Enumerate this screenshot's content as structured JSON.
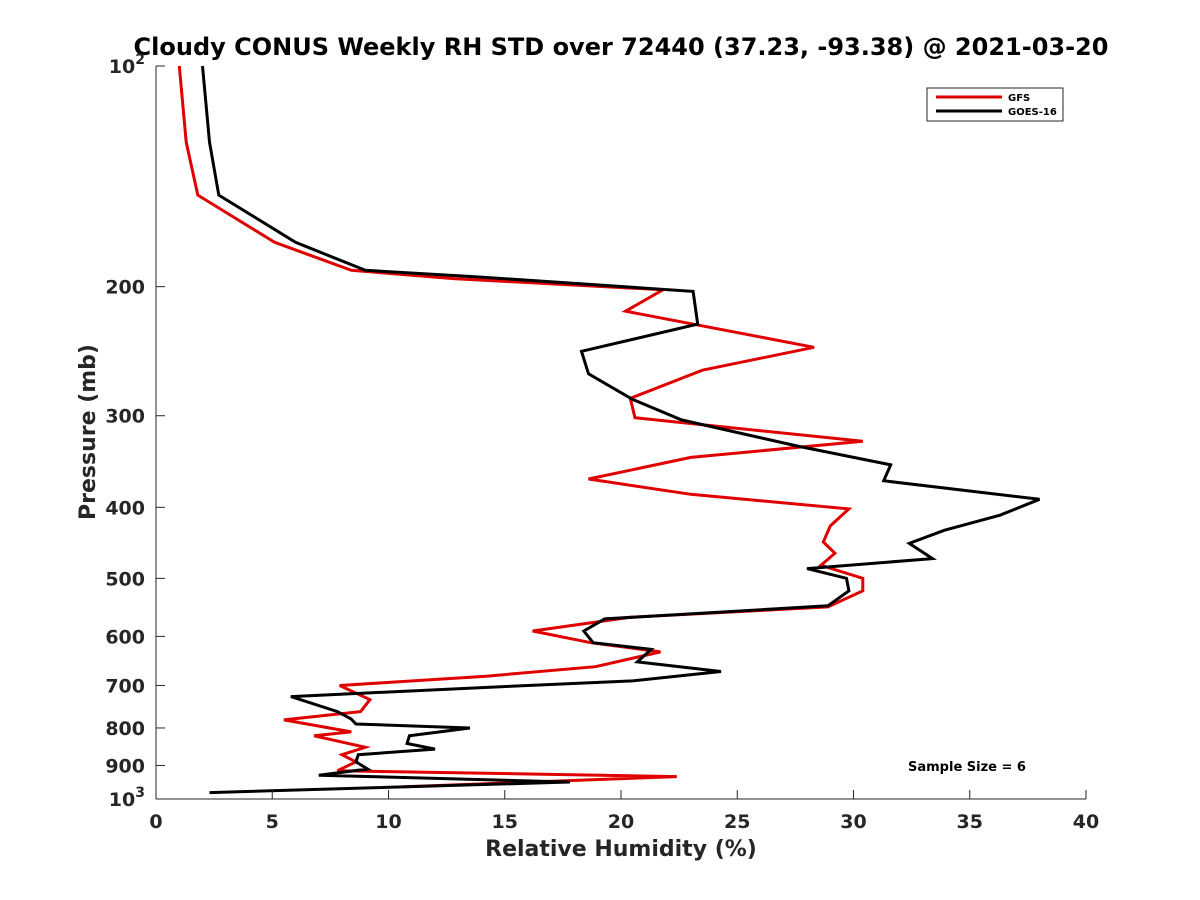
{
  "chart_data": {
    "type": "line",
    "title": "Cloudy CONUS Weekly RH STD over 72440 (37.23, -93.38) @ 2021-03-20",
    "xlabel": "Relative Humidity (%)",
    "ylabel": "Pressure (mb)",
    "xlim": [
      0,
      40
    ],
    "ylim": [
      100,
      1000
    ],
    "y_scale": "log",
    "y_reversed": true,
    "x_ticks": [
      "0",
      "5",
      "10",
      "15",
      "20",
      "25",
      "30",
      "35",
      "40"
    ],
    "y_ticks": [
      {
        "value": 100,
        "base": "10",
        "exp": "2"
      },
      {
        "value": 200,
        "label": "200"
      },
      {
        "value": 300,
        "label": "300"
      },
      {
        "value": 400,
        "label": "400"
      },
      {
        "value": 500,
        "label": "500"
      },
      {
        "value": 600,
        "label": "600"
      },
      {
        "value": 700,
        "label": "700"
      },
      {
        "value": 800,
        "label": "800"
      },
      {
        "value": 900,
        "label": "900"
      },
      {
        "value": 1000,
        "base": "10",
        "exp": "3"
      }
    ],
    "legend_position": "top-right",
    "annotation": "Sample Size = 6",
    "series": [
      {
        "name": "GFS",
        "color": "#e00000",
        "x": [
          1.0,
          1.3,
          1.8,
          5.1,
          8.4,
          12.8,
          21.8,
          20.2,
          28.3,
          23.5,
          20.4,
          20.6,
          30.4,
          23.0,
          18.6,
          23.0,
          29.8,
          29.0,
          28.7,
          29.2,
          28.6,
          30.4,
          30.4,
          28.9,
          20.4,
          16.2,
          18.7,
          21.7,
          18.9,
          14.2,
          7.9,
          9.2,
          8.8,
          5.5,
          8.4,
          6.8,
          9.0,
          8.0,
          8.6,
          7.8,
          22.4,
          10.7
        ],
        "y": [
          100,
          127,
          150,
          174,
          190,
          195,
          202,
          216,
          242,
          260,
          284,
          302,
          325,
          342,
          366,
          384,
          402,
          424,
          446,
          462,
          480,
          500,
          520,
          547,
          565,
          590,
          612,
          630,
          660,
          680,
          700,
          732,
          760,
          780,
          810,
          820,
          850,
          870,
          890,
          915,
          932,
          962
        ]
      },
      {
        "name": "GOES-16",
        "color": "#000000",
        "x": [
          2.0,
          2.3,
          2.7,
          6.0,
          9.0,
          13.9,
          23.1,
          23.3,
          18.3,
          18.6,
          20.5,
          22.6,
          27.6,
          31.6,
          31.3,
          38.0,
          36.3,
          33.9,
          32.4,
          33.4,
          28.0,
          29.7,
          29.8,
          28.9,
          19.3,
          18.4,
          18.8,
          21.3,
          20.7,
          24.3,
          20.5,
          13.9,
          5.8,
          7.8,
          8.4,
          8.6,
          13.5,
          10.9,
          10.8,
          12.0,
          8.7,
          8.6,
          9.1,
          7.0,
          17.8,
          2.3
        ],
        "y": [
          100,
          127,
          150,
          174,
          190,
          194,
          203,
          225,
          245,
          263,
          285,
          304,
          330,
          350,
          368,
          390,
          410,
          430,
          448,
          470,
          485,
          500,
          520,
          545,
          568,
          590,
          612,
          625,
          650,
          670,
          690,
          705,
          725,
          760,
          778,
          790,
          800,
          820,
          840,
          855,
          870,
          890,
          910,
          928,
          948,
          980
        ]
      }
    ]
  }
}
